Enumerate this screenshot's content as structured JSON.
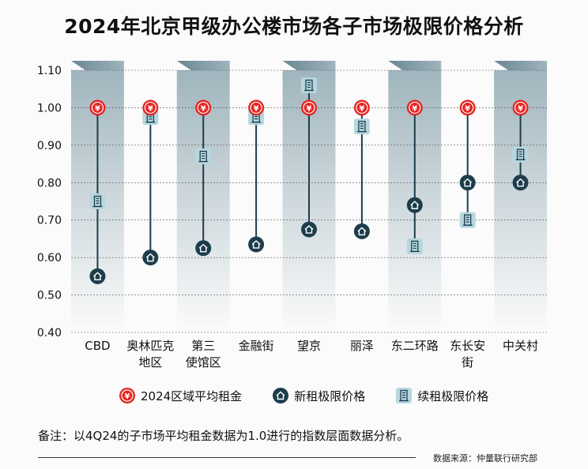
{
  "title": "2024年北京甲级办公楼市场各子市场极限价格分析",
  "chart_data": {
    "type": "scatter",
    "categories": [
      [
        "CBD"
      ],
      [
        "奥林匹克",
        "地区"
      ],
      [
        "第三",
        "使馆区"
      ],
      [
        "金融街"
      ],
      [
        "望京"
      ],
      [
        "丽泽"
      ],
      [
        "东二环路"
      ],
      [
        "东长安",
        "街"
      ],
      [
        "中关村"
      ]
    ],
    "ylim": [
      0.4,
      1.1
    ],
    "yticks": [
      "0.40",
      "0.50",
      "0.60",
      "0.70",
      "0.80",
      "0.90",
      "1.00",
      "1.10"
    ],
    "series": [
      {
        "name": "2024区域平均租金",
        "key": "avg",
        "values": [
          1.0,
          1.0,
          1.0,
          1.0,
          1.0,
          1.0,
          1.0,
          1.0,
          1.0
        ]
      },
      {
        "name": "新租极限价格",
        "key": "new",
        "values": [
          0.55,
          0.6,
          0.625,
          0.635,
          0.675,
          0.67,
          0.74,
          0.8,
          0.8
        ]
      },
      {
        "name": "续租极限价格",
        "key": "renew",
        "values": [
          0.75,
          0.975,
          0.87,
          0.975,
          1.06,
          0.95,
          0.63,
          0.7,
          0.875
        ]
      }
    ],
    "grid": true,
    "legend_position": "bottom"
  },
  "legend": [
    {
      "label": "2024区域平均租金",
      "icon": "yen-icon",
      "color": "#e52421"
    },
    {
      "label": "新租极限价格",
      "icon": "house-icon",
      "color": "#1d3d4c"
    },
    {
      "label": "续租极限价格",
      "icon": "building-icon",
      "color": "#b7d7df"
    }
  ],
  "note": "备注：以4Q24的子市场平均租金数据为1.0进行的指数层面数据分析。",
  "source": "数据来源：仲量联行研究部",
  "colors": {
    "avg": "#e52421",
    "new": "#1d3d4c",
    "renew": "#b7d7df",
    "band": "#8fa8b2",
    "line": "#1d3d4c"
  }
}
